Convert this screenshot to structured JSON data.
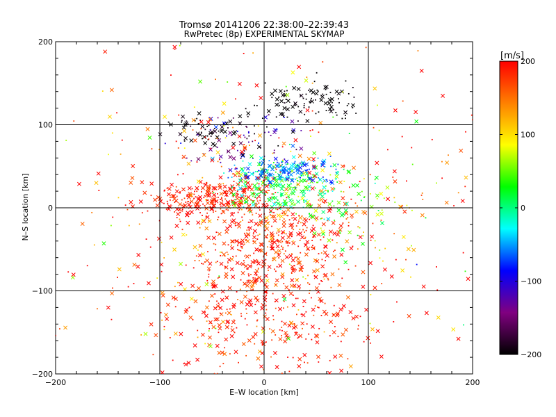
{
  "chart_data": {
    "type": "scatter",
    "title": "Tromsø 20141206 22:38:00–22:39:43",
    "subtitle": "RwPretec (8p) EXPERIMENTAL SKYMAP",
    "xlabel": "E–W location [km]",
    "ylabel": "N–S location [km]",
    "xlim": [
      -200,
      200
    ],
    "ylim": [
      -200,
      200
    ],
    "xticks": [
      "−200",
      "−100",
      "0",
      "100",
      "200"
    ],
    "yticks": [
      "200",
      "100",
      "0",
      "−100",
      "−200"
    ],
    "grid": true,
    "colorbar": {
      "label": "[m/s]",
      "range": [
        -200,
        200
      ],
      "ticks": [
        "200",
        "100",
        "0",
        "−100",
        "−200"
      ],
      "colors": [
        "#000000",
        "#800080",
        "#0000ff",
        "#00ffff",
        "#00ff00",
        "#ffff00",
        "#ff8000",
        "#ff0000"
      ]
    },
    "clusters": [
      {
        "x": -50,
        "y": 10,
        "sx": 30,
        "sy": 12,
        "n": 260,
        "v": 190,
        "vs": 15
      },
      {
        "x": 10,
        "y": -40,
        "sx": 35,
        "sy": 30,
        "n": 350,
        "v": 185,
        "vs": 25
      },
      {
        "x": 15,
        "y": 25,
        "sx": 25,
        "sy": 15,
        "n": 220,
        "v": 20,
        "vs": 30
      },
      {
        "x": 20,
        "y": 45,
        "sx": 25,
        "sy": 8,
        "n": 150,
        "v": -60,
        "vs": 25
      },
      {
        "x": 40,
        "y": 130,
        "sx": 25,
        "sy": 12,
        "n": 110,
        "v": -200,
        "vs": 5
      },
      {
        "x": -60,
        "y": 95,
        "sx": 20,
        "sy": 8,
        "n": 50,
        "v": -195,
        "vs": 10
      },
      {
        "x": -20,
        "y": 85,
        "sx": 30,
        "sy": 15,
        "n": 80,
        "v": -140,
        "vs": 40
      },
      {
        "x": 0,
        "y": -130,
        "sx": 50,
        "sy": 40,
        "n": 300,
        "v": 190,
        "vs": 20
      },
      {
        "x": 0,
        "y": 0,
        "sx": 110,
        "sy": 90,
        "n": 500,
        "v": 170,
        "vs": 70
      },
      {
        "x": 80,
        "y": 10,
        "sx": 30,
        "sy": 30,
        "n": 90,
        "v": 60,
        "vs": 60
      }
    ]
  }
}
